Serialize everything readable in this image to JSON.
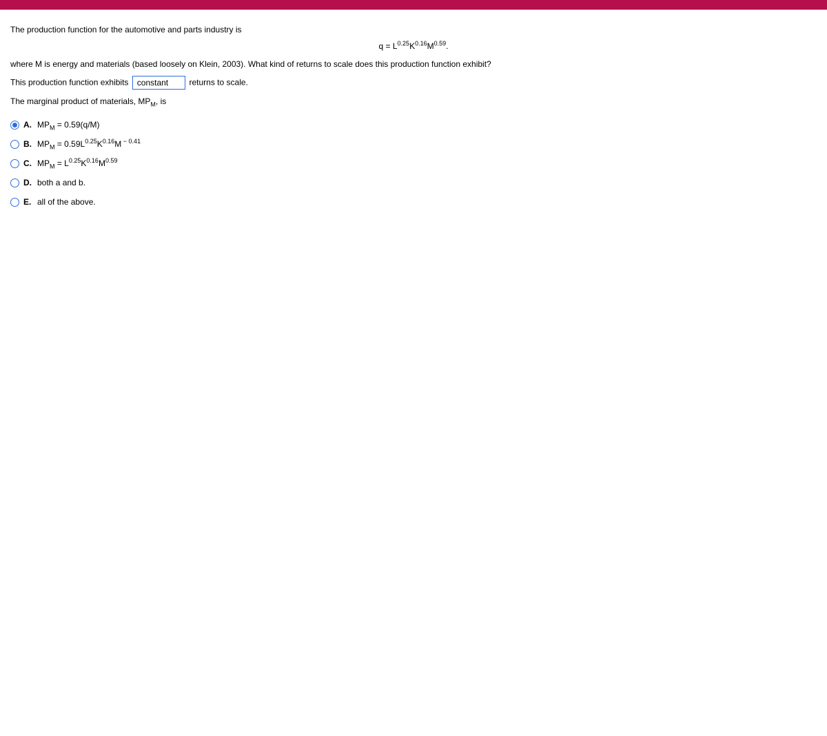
{
  "colors": {
    "top_bar": "#b5104c",
    "accent": "#2d6cdf",
    "text": "#000000",
    "background": "#ffffff"
  },
  "question": {
    "line1": "The production function for the automotive and parts industry is",
    "equation": {
      "prefix": "q = L",
      "exp1": "0.25",
      "mid1": "K",
      "exp2": "0.16",
      "mid2": "M",
      "exp3": "0.59",
      "suffix": "."
    },
    "line2": "where M is energy and materials (based loosely on Klein, 2003).  What kind of returns to scale does this production function exhibit?",
    "line3_pre": "This production function exhibits",
    "dropdown_value": "constant",
    "line3_post": "returns to scale.",
    "line4_pre": "The marginal product of materials, MP",
    "line4_sub": "M",
    "line4_post": ", is"
  },
  "options": {
    "selected_index": 0,
    "items": [
      {
        "letter": "A.",
        "plain_prefix": "MP",
        "sub1": "M",
        "mid": " = 0.59(q/M)",
        "type": "simple"
      },
      {
        "letter": "B.",
        "prefix": "MP",
        "sub1": "M",
        "eq": " = 0.59L",
        "e1": "0.25",
        "k": "K",
        "e2": "0.16",
        "m": "M",
        "e3": " − 0.41",
        "type": "expr"
      },
      {
        "letter": "C.",
        "prefix": "MP",
        "sub1": "M",
        "eq": " = L",
        "e1": "0.25",
        "k": "K",
        "e2": "0.16",
        "m": "M",
        "e3": "0.59",
        "type": "expr"
      },
      {
        "letter": "D.",
        "text": "both a and b.",
        "type": "plain"
      },
      {
        "letter": "E.",
        "text": "all of the above.",
        "type": "plain"
      }
    ]
  }
}
